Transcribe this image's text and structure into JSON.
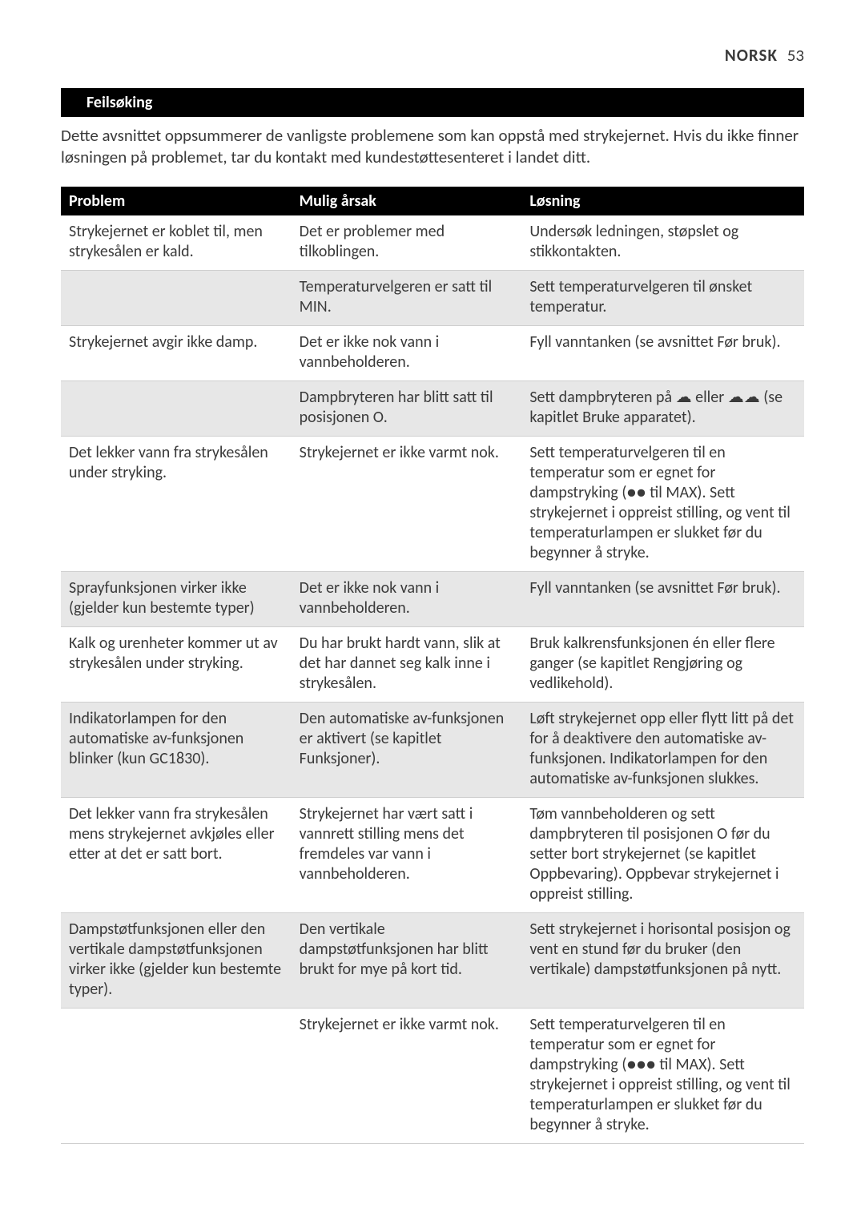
{
  "header": {
    "lang": "NORSK",
    "page": "53"
  },
  "section_title": "Feilsøking",
  "intro": "Dette avsnittet oppsummerer de vanligste problemene som kan oppstå med strykejernet. Hvis du ikke finner løsningen på problemet, tar du kontakt med kundestøttesenteret i landet ditt.",
  "table": {
    "columns": [
      "Problem",
      "Mulig årsak",
      "Løsning"
    ],
    "rows": [
      {
        "alt": false,
        "problem": "Strykejernet er koblet til, men strykesålen er kald.",
        "cause": "Det er problemer med tilkoblingen.",
        "solution": "Undersøk ledningen, støpslet og stikkontakten."
      },
      {
        "alt": true,
        "problem": "",
        "cause": "Temperaturvelgeren er satt til MIN.",
        "solution": "Sett temperaturvelgeren til ønsket temperatur."
      },
      {
        "alt": false,
        "problem": "Strykejernet avgir ikke damp.",
        "cause": "Det er ikke nok vann i vannbeholderen.",
        "solution": "Fyll vanntanken (se avsnittet Før bruk)."
      },
      {
        "alt": true,
        "problem": "",
        "cause": "Dampbryteren har blitt satt til posisjonen O.",
        "solution": "Sett dampbryteren på ☁ eller ☁☁ (se kapitlet Bruke apparatet)."
      },
      {
        "alt": false,
        "problem": "Det lekker vann fra strykesålen under stryking.",
        "cause": "Strykejernet er ikke varmt nok.",
        "solution": "Sett temperaturvelgeren til en temperatur som er egnet for dampstryking (●● til MAX). Sett strykejernet i oppreist stilling, og vent til temperaturlampen er slukket før du begynner å stryke."
      },
      {
        "alt": true,
        "problem": "Sprayfunksjonen virker ikke (gjelder kun bestemte typer)",
        "cause": "Det er ikke nok vann i vannbeholderen.",
        "solution": "Fyll vanntanken (se avsnittet Før bruk)."
      },
      {
        "alt": false,
        "problem": "Kalk og urenheter kommer ut av strykesålen under stryking.",
        "cause": "Du har brukt hardt vann, slik at det har dannet seg kalk inne i strykesålen.",
        "solution": "Bruk kalkrensfunksjonen én eller flere ganger (se kapitlet Rengjøring og vedlikehold)."
      },
      {
        "alt": true,
        "problem": "Indikatorlampen for den automatiske av-funksjonen blinker (kun GC1830).",
        "cause": "Den automatiske av-funksjonen er aktivert (se kapitlet Funksjoner).",
        "solution": "Løft strykejernet opp eller flytt litt på det for å deaktivere den automatiske av-funksjonen. Indikatorlampen for den automatiske av-funksjonen slukkes."
      },
      {
        "alt": false,
        "problem": "Det lekker vann fra strykesålen mens strykejernet avkjøles eller etter at det er satt bort.",
        "cause": "Strykejernet har vært satt i vannrett stilling mens det fremdeles var vann i vannbeholderen.",
        "solution": "Tøm vannbeholderen og sett dampbryteren til posisjonen O før du setter bort strykejernet (se kapitlet Oppbevaring). Oppbevar strykejernet i oppreist stilling."
      },
      {
        "alt": true,
        "problem": "Dampstøtfunksjonen eller den vertikale dampstøtfunksjonen virker ikke (gjelder kun bestemte typer).",
        "cause": "Den vertikale dampstøtfunksjonen har blitt brukt for mye på kort tid.",
        "solution": "Sett strykejernet i horisontal posisjon og vent en stund før du bruker (den vertikale) dampstøtfunksjonen på nytt."
      },
      {
        "alt": false,
        "problem": "",
        "cause": "Strykejernet er ikke varmt nok.",
        "solution": "Sett temperaturvelgeren til en temperatur som er egnet for dampstryking (●●● til MAX). Sett strykejernet i oppreist stilling, og vent til temperaturlampen er slukket før du begynner å stryke."
      }
    ]
  },
  "style": {
    "page_bg": "#ffffff",
    "text_color": "#3a3a3a",
    "bar_bg": "#000000",
    "bar_fg": "#ffffff",
    "alt_row_bg": "#e7e7e7",
    "rule_color": "#cfcfcf",
    "body_fontsize": 21,
    "table_fontsize": 20,
    "header_fontsize": 21
  }
}
